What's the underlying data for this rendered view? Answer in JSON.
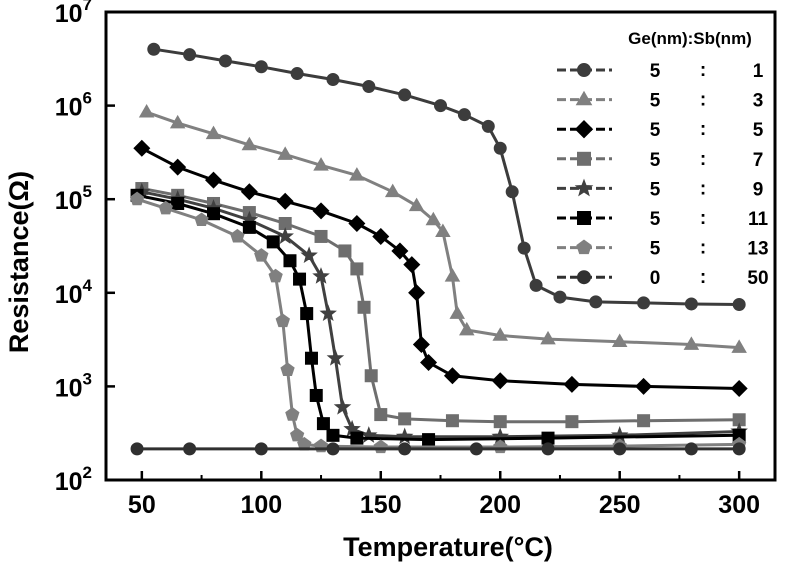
{
  "chart_data": {
    "type": "scatter",
    "xlabel": "Temperature(°C)",
    "ylabel": "Resistance(Ω)",
    "xlim": [
      35,
      315
    ],
    "ylim": [
      100,
      10000000
    ],
    "y_scale": "log",
    "x_ticks": [
      50,
      100,
      150,
      200,
      250,
      300
    ],
    "y_ticks": [
      {
        "value": 100,
        "base": "10",
        "exp": "2"
      },
      {
        "value": 1000,
        "base": "10",
        "exp": "3"
      },
      {
        "value": 10000,
        "base": "10",
        "exp": "4"
      },
      {
        "value": 100000,
        "base": "10",
        "exp": "5"
      },
      {
        "value": 1000000,
        "base": "10",
        "exp": "6"
      },
      {
        "value": 10000000,
        "base": "10",
        "exp": "7"
      }
    ],
    "legend_title": "Ge(nm):Sb(nm)",
    "legend_position": "top-right",
    "series": [
      {
        "ge": "5",
        "sep": ":",
        "sb": "1",
        "marker": "circle",
        "color": "#3c3c3c",
        "x": [
          55,
          70,
          85,
          100,
          115,
          130,
          145,
          160,
          175,
          185,
          195,
          200,
          205,
          210,
          215,
          225,
          240,
          260,
          280,
          300
        ],
        "y": [
          4000000,
          3500000,
          3000000,
          2600000,
          2200000,
          1900000,
          1600000,
          1300000,
          1000000,
          800000,
          600000,
          350000,
          120000,
          30000,
          12000,
          9000,
          8000,
          7800,
          7600,
          7500
        ]
      },
      {
        "ge": "5",
        "sep": ":",
        "sb": "3",
        "marker": "triangle",
        "color": "#808080",
        "x": [
          52,
          65,
          80,
          95,
          110,
          125,
          140,
          155,
          165,
          172,
          176,
          180,
          182,
          186,
          200,
          220,
          250,
          280,
          300
        ],
        "y": [
          850000,
          650000,
          500000,
          380000,
          300000,
          230000,
          180000,
          120000,
          85000,
          60000,
          45000,
          15000,
          6000,
          4000,
          3500,
          3200,
          3000,
          2800,
          2600
        ]
      },
      {
        "ge": "5",
        "sep": ":",
        "sb": "5",
        "marker": "diamond",
        "color": "#000000",
        "x": [
          50,
          65,
          80,
          95,
          110,
          125,
          140,
          150,
          158,
          163,
          165,
          167,
          170,
          180,
          200,
          230,
          260,
          300
        ],
        "y": [
          350000,
          220000,
          160000,
          120000,
          95000,
          75000,
          55000,
          40000,
          28000,
          20000,
          10000,
          2800,
          1800,
          1300,
          1150,
          1050,
          1000,
          950
        ]
      },
      {
        "ge": "5",
        "sep": ":",
        "sb": "7",
        "marker": "square",
        "color": "#6e6e6e",
        "x": [
          50,
          65,
          80,
          95,
          110,
          125,
          135,
          140,
          143,
          146,
          150,
          160,
          180,
          200,
          230,
          260,
          300
        ],
        "y": [
          130000,
          110000,
          90000,
          72000,
          55000,
          40000,
          28000,
          18000,
          7000,
          1300,
          500,
          450,
          430,
          420,
          420,
          430,
          440
        ]
      },
      {
        "ge": "5",
        "sep": ":",
        "sb": "9",
        "marker": "star",
        "color": "#404040",
        "x": [
          50,
          65,
          80,
          95,
          110,
          120,
          125,
          128,
          131,
          134,
          138,
          145,
          160,
          200,
          250,
          300
        ],
        "y": [
          120000,
          100000,
          80000,
          60000,
          40000,
          25000,
          15000,
          6000,
          2000,
          600,
          350,
          300,
          290,
          290,
          300,
          330
        ]
      },
      {
        "ge": "5",
        "sep": ":",
        "sb": "11",
        "marker": "filled-square",
        "color": "#000000",
        "x": [
          48,
          65,
          80,
          95,
          105,
          112,
          116,
          119,
          121,
          123,
          126,
          130,
          140,
          170,
          220,
          300
        ],
        "y": [
          110000,
          90000,
          70000,
          50000,
          35000,
          22000,
          14000,
          6000,
          2000,
          800,
          400,
          300,
          280,
          270,
          280,
          300
        ]
      },
      {
        "ge": "5",
        "sep": ":",
        "sb": "13",
        "marker": "pentagon",
        "color": "#808080",
        "x": [
          48,
          60,
          75,
          90,
          100,
          106,
          109,
          111,
          113,
          115,
          118,
          125,
          150,
          200,
          250,
          300
        ],
        "y": [
          100000,
          80000,
          60000,
          40000,
          25000,
          15000,
          5000,
          1500,
          500,
          300,
          240,
          230,
          225,
          225,
          230,
          240
        ]
      },
      {
        "ge": "0",
        "sep": ":",
        "sb": "50",
        "marker": "circle",
        "color": "#303030",
        "x": [
          48,
          70,
          100,
          130,
          160,
          190,
          220,
          250,
          280,
          300
        ],
        "y": [
          215,
          215,
          215,
          215,
          215,
          215,
          215,
          215,
          215,
          215
        ]
      }
    ]
  }
}
